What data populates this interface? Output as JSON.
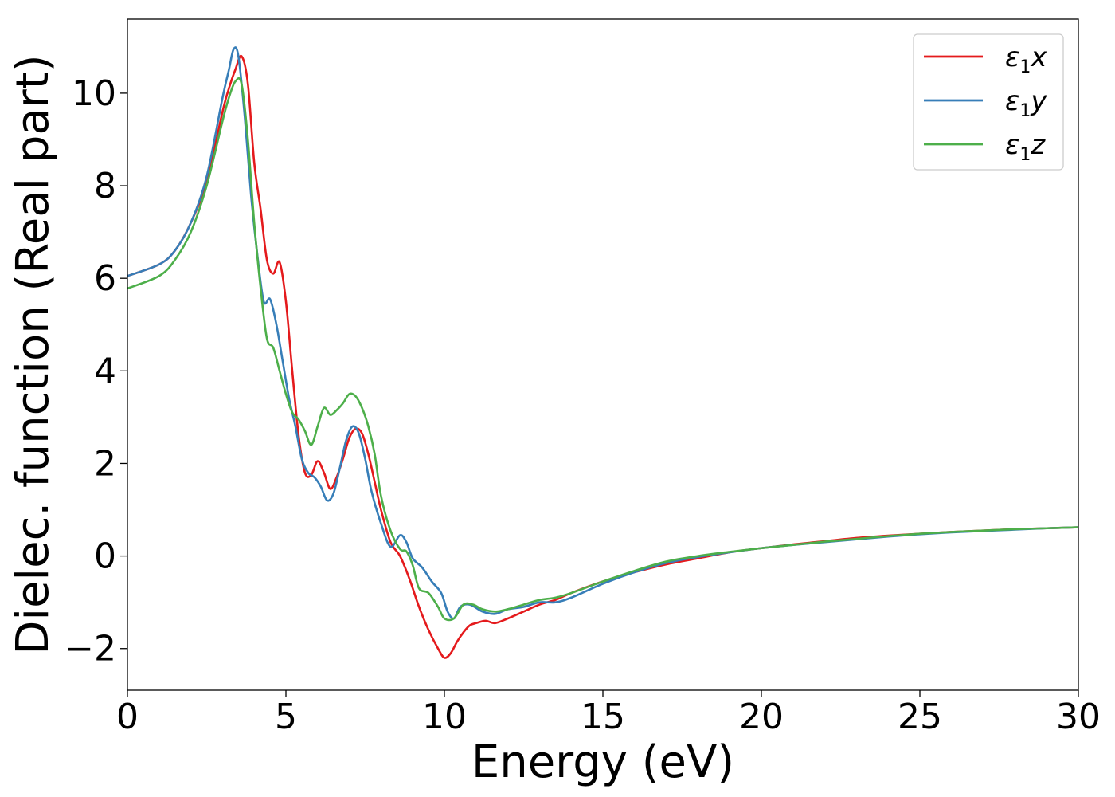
{
  "chart_data": {
    "type": "line",
    "xlabel": "Energy (eV)",
    "ylabel": "Dielec. function (Real part)",
    "xlim": [
      0,
      30
    ],
    "ylim": [
      -2.9,
      11.6
    ],
    "xticks": [
      0,
      5,
      10,
      15,
      20,
      25,
      30
    ],
    "xtick_labels": [
      "0",
      "5",
      "10",
      "15",
      "20",
      "25",
      "30"
    ],
    "yticks": [
      -2,
      0,
      2,
      4,
      6,
      8,
      10
    ],
    "ytick_labels": [
      "−2",
      "0",
      "2",
      "4",
      "6",
      "8",
      "10"
    ],
    "grid": false,
    "legend_position": "top-right",
    "series": [
      {
        "name": "ε1x",
        "legend_base": "ε",
        "legend_sub": "1",
        "legend_suffix": "x",
        "color": "#e41a1c",
        "x": [
          0,
          1,
          1.5,
          2,
          2.5,
          3,
          3.2,
          3.4,
          3.6,
          3.8,
          4.0,
          4.2,
          4.4,
          4.6,
          4.8,
          5.0,
          5.2,
          5.4,
          5.6,
          5.8,
          6.0,
          6.2,
          6.4,
          6.6,
          6.8,
          7.0,
          7.2,
          7.4,
          7.6,
          7.8,
          8.0,
          8.3,
          8.6,
          8.9,
          9.2,
          9.5,
          9.8,
          10.0,
          10.2,
          10.4,
          10.6,
          10.8,
          11.0,
          11.3,
          11.6,
          12.0,
          12.5,
          13.0,
          13.5,
          14.0,
          15.0,
          16.0,
          17.0,
          18.0,
          19.0,
          20.0,
          21.0,
          22.0,
          23.0,
          24.0,
          25.0,
          26.0,
          27.0,
          28.0,
          29.0,
          30.0
        ],
        "y": [
          6.05,
          6.3,
          6.6,
          7.2,
          8.1,
          9.6,
          10.1,
          10.5,
          10.8,
          10.2,
          8.5,
          7.5,
          6.4,
          6.1,
          6.35,
          5.5,
          4.0,
          2.6,
          1.8,
          1.75,
          2.05,
          1.8,
          1.45,
          1.7,
          2.1,
          2.55,
          2.75,
          2.65,
          2.2,
          1.6,
          1.0,
          0.3,
          0.0,
          -0.5,
          -1.1,
          -1.6,
          -2.0,
          -2.2,
          -2.1,
          -1.85,
          -1.65,
          -1.5,
          -1.45,
          -1.4,
          -1.45,
          -1.35,
          -1.2,
          -1.05,
          -0.95,
          -0.8,
          -0.55,
          -0.35,
          -0.18,
          -0.05,
          0.08,
          0.17,
          0.25,
          0.32,
          0.39,
          0.44,
          0.48,
          0.52,
          0.55,
          0.58,
          0.6,
          0.62
        ]
      },
      {
        "name": "ε1y",
        "legend_base": "ε",
        "legend_sub": "1",
        "legend_suffix": "y",
        "color": "#377eb8",
        "x": [
          0,
          1,
          1.5,
          2,
          2.5,
          3,
          3.2,
          3.35,
          3.5,
          3.7,
          3.9,
          4.1,
          4.3,
          4.5,
          4.7,
          4.9,
          5.1,
          5.3,
          5.5,
          5.7,
          5.9,
          6.1,
          6.3,
          6.5,
          6.7,
          6.9,
          7.1,
          7.3,
          7.5,
          7.7,
          8.0,
          8.3,
          8.6,
          8.8,
          9.0,
          9.3,
          9.6,
          9.9,
          10.1,
          10.3,
          10.5,
          10.8,
          11.2,
          11.6,
          12.0,
          12.5,
          13.0,
          13.5,
          14.0,
          15.0,
          16.0,
          17.0,
          18.0,
          19.0,
          20.0,
          21.0,
          22.0,
          23.0,
          24.0,
          25.0,
          26.0,
          27.0,
          28.0,
          29.0,
          30.0
        ],
        "y": [
          6.05,
          6.3,
          6.6,
          7.2,
          8.2,
          9.9,
          10.5,
          10.95,
          10.8,
          9.5,
          7.8,
          6.5,
          5.5,
          5.55,
          5.0,
          4.2,
          3.4,
          2.8,
          2.1,
          1.8,
          1.7,
          1.5,
          1.2,
          1.35,
          1.9,
          2.5,
          2.8,
          2.65,
          2.1,
          1.4,
          0.7,
          0.2,
          0.45,
          0.3,
          -0.05,
          -0.25,
          -0.55,
          -0.8,
          -1.2,
          -1.35,
          -1.1,
          -1.05,
          -1.2,
          -1.25,
          -1.15,
          -1.1,
          -1.0,
          -1.0,
          -0.9,
          -0.6,
          -0.35,
          -0.15,
          -0.02,
          0.08,
          0.17,
          0.24,
          0.3,
          0.36,
          0.42,
          0.47,
          0.51,
          0.54,
          0.57,
          0.6,
          0.62
        ]
      },
      {
        "name": "ε1z",
        "legend_base": "ε",
        "legend_sub": "1",
        "legend_suffix": "z",
        "color": "#4daf4a",
        "x": [
          0,
          1,
          1.5,
          2,
          2.5,
          3,
          3.2,
          3.4,
          3.6,
          3.8,
          4.0,
          4.2,
          4.4,
          4.6,
          4.8,
          5.0,
          5.2,
          5.4,
          5.6,
          5.8,
          6.0,
          6.2,
          6.4,
          6.6,
          6.8,
          7.0,
          7.2,
          7.4,
          7.6,
          7.8,
          8.0,
          8.3,
          8.6,
          8.8,
          9.0,
          9.2,
          9.5,
          9.8,
          10.0,
          10.3,
          10.6,
          10.9,
          11.2,
          11.6,
          12.0,
          12.5,
          13.0,
          13.5,
          14.0,
          15.0,
          16.0,
          17.0,
          18.0,
          19.0,
          20.0,
          21.0,
          22.0,
          23.0,
          24.0,
          25.0,
          26.0,
          27.0,
          28.0,
          29.0,
          30.0
        ],
        "y": [
          5.78,
          6.05,
          6.4,
          7.0,
          8.0,
          9.4,
          9.9,
          10.25,
          10.2,
          9.0,
          7.2,
          5.8,
          4.7,
          4.5,
          4.0,
          3.5,
          3.1,
          2.95,
          2.7,
          2.4,
          2.8,
          3.2,
          3.05,
          3.15,
          3.3,
          3.5,
          3.45,
          3.2,
          2.8,
          2.2,
          1.3,
          0.55,
          0.15,
          0.1,
          -0.2,
          -0.7,
          -0.8,
          -1.1,
          -1.35,
          -1.35,
          -1.05,
          -1.05,
          -1.15,
          -1.2,
          -1.15,
          -1.05,
          -0.95,
          -0.9,
          -0.8,
          -0.55,
          -0.32,
          -0.12,
          0.0,
          0.09,
          0.17,
          0.24,
          0.31,
          0.37,
          0.43,
          0.48,
          0.52,
          0.55,
          0.58,
          0.6,
          0.62
        ]
      }
    ]
  }
}
